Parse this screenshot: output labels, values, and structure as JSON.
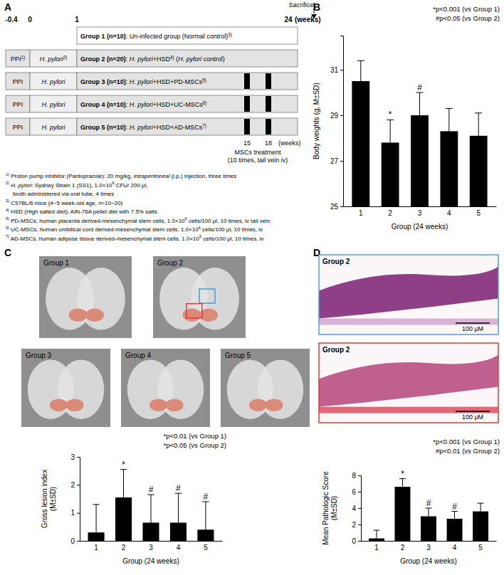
{
  "panels": [
    "A",
    "B",
    "C",
    "D"
  ],
  "diagram": {
    "sacrifice": "Sacrifice",
    "timeline": [
      {
        "value": -0.4,
        "label": "-0.4"
      },
      {
        "value": 0,
        "label": "0"
      },
      {
        "value": 1,
        "label": "1"
      },
      {
        "value": 24,
        "label": "24"
      }
    ],
    "timeline_unit": "(weeks)",
    "groups": [
      {
        "label": [
          {
            "t": "Group 1 (n=10)",
            "b": true
          },
          {
            "t": ": Un-infected group (Normal control)"
          },
          {
            "t": "3)",
            "sup": true
          }
        ],
        "pretreatment": null,
        "infection": null,
        "treated": false
      },
      {
        "label": [
          {
            "t": "Group 2 (n=20)",
            "b": true
          },
          {
            "t": ": "
          },
          {
            "t": "H. pylori",
            "i": true
          },
          {
            "t": "+HSD"
          },
          {
            "t": "4)",
            "sup": true
          },
          {
            "t": " ("
          },
          {
            "t": "H. pylori",
            "i": true
          },
          {
            "t": " control)"
          }
        ],
        "pretreatment": [
          {
            "t": "PPI"
          },
          {
            "t": "1)",
            "sup": true
          }
        ],
        "infection": [
          {
            "t": "H. pylori",
            "i": true
          },
          {
            "t": "2)",
            "sup": true
          }
        ],
        "treated": false
      },
      {
        "label": [
          {
            "t": "Group 3 (n=10)",
            "b": true
          },
          {
            "t": ": "
          },
          {
            "t": "H. pylori",
            "i": true
          },
          {
            "t": "+HSD+PD-MSCs"
          },
          {
            "t": "5)",
            "sup": true
          }
        ],
        "pretreatment": [
          {
            "t": "PPI"
          }
        ],
        "infection": [
          {
            "t": "H. pylori",
            "i": true
          }
        ],
        "treated": true
      },
      {
        "label": [
          {
            "t": "Group 4 (n=10)",
            "b": true
          },
          {
            "t": ": "
          },
          {
            "t": "H. pylori",
            "i": true
          },
          {
            "t": "+HSD+UC-MSCs"
          },
          {
            "t": "6)",
            "sup": true
          }
        ],
        "pretreatment": [
          {
            "t": "PPI"
          }
        ],
        "infection": [
          {
            "t": "H. pylori",
            "i": true
          }
        ],
        "treated": true
      },
      {
        "label": [
          {
            "t": "Group 5 (n=10)",
            "b": true
          },
          {
            "t": ": "
          },
          {
            "t": "H. pylori",
            "i": true
          },
          {
            "t": "+HSD+AD-MSCs"
          },
          {
            "t": "7)",
            "sup": true
          }
        ],
        "pretreatment": [
          {
            "t": "PPI"
          }
        ],
        "infection": [
          {
            "t": "H. pylori",
            "i": true
          }
        ],
        "treated": true
      }
    ],
    "treatment_weeks": [
      15,
      18
    ],
    "treatment_unit": "(weeks)",
    "treatment_label": [
      "MSCs treatment",
      "(10 times, tail vein iv)"
    ],
    "footnotes": [
      [
        {
          "t": "1)",
          "sup": true
        },
        {
          "t": " Proton pump inhibitor (Pantoprazole): 20 mg/kg, "
        },
        {
          "t": "intraperitoneal",
          "i": true
        },
        {
          "t": " (i.p.) injection, three times"
        }
      ],
      [
        {
          "t": "2)",
          "sup": true
        },
        {
          "t": " H. pylori",
          "i": true
        },
        {
          "t": ": Sydney Strain 1 (SS1), 1.0×10"
        },
        {
          "t": "9",
          "sup": true
        },
        {
          "t": " CFU/ 200 μl,"
        }
      ],
      [
        {
          "t": "broth administered via oral tube, 4 times"
        }
      ],
      [
        {
          "t": "3)",
          "sup": true
        },
        {
          "t": " C57BL/6 mice (4~5 week-old age, n=10~20)"
        }
      ],
      [
        {
          "t": "4)",
          "sup": true
        },
        {
          "t": " HSD (High salted diet): AIN-76A pellet diet with 7.5% salts"
        }
      ],
      [
        {
          "t": "5)",
          "sup": true
        },
        {
          "t": " PD-MSCs, human placenta derived-mesenchymal stem cells, 1.0×10"
        },
        {
          "t": "6",
          "sup": true
        },
        {
          "t": " cells/100 μl, 10 times, iv tail vein"
        }
      ],
      [
        {
          "t": "6)",
          "sup": true
        },
        {
          "t": " UC-MSCs, human umbilical cord derived-mesenchymal stem cells, 1.0×10"
        },
        {
          "t": "6",
          "sup": true
        },
        {
          "t": " cells/100 μl, 10 times, iv"
        }
      ],
      [
        {
          "t": "7)",
          "sup": true
        },
        {
          "t": " AD-MSCs, human adipose tissue derived-mesenchymal stem cells, 1.0×10"
        },
        {
          "t": "6",
          "sup": true
        },
        {
          "t": " cells/100 μl, 10 times, iv"
        }
      ]
    ]
  },
  "photos": {
    "labels": [
      "Group 1",
      "Group 2",
      "Group 3",
      "Group 4",
      "Group 5"
    ]
  },
  "histology": [
    {
      "label": "Group 2",
      "scale_bar": "100 μM"
    },
    {
      "label": "Group 2",
      "scale_bar": "100 μM"
    }
  ],
  "chart_data": [
    {
      "type": "bar",
      "categories": [
        "1",
        "2",
        "3",
        "4",
        "5"
      ],
      "values": [
        30.5,
        27.8,
        29.0,
        28.3,
        28.1
      ],
      "errors": [
        0.9,
        1.0,
        1.0,
        1.0,
        1.0
      ],
      "color": "#000000",
      "ylim": [
        25,
        32.5
      ],
      "yticks": [
        25,
        27,
        29,
        31
      ],
      "xlabel": "Group (24 weeks)",
      "ylabel": [
        "Body weights (g, M±SD)"
      ],
      "notes": [
        "*p<0.001 (vs Group 1)",
        "#p<0.05 (vs Group 2)"
      ],
      "annotations": [
        {
          "index": 1,
          "text": "*"
        },
        {
          "index": 2,
          "text": "#"
        }
      ]
    },
    {
      "type": "bar",
      "categories": [
        "1",
        "2",
        "3",
        "4",
        "5"
      ],
      "values": [
        0.3,
        1.55,
        0.65,
        0.65,
        0.4
      ],
      "errors": [
        1.0,
        1.0,
        1.0,
        1.05,
        1.0
      ],
      "color": "#000000",
      "ylim": [
        0,
        3
      ],
      "yticks": [
        0,
        1,
        2,
        3
      ],
      "xlabel": "Group (24 weeks)",
      "ylabel": [
        "Gross lesion index",
        "(M±SD)"
      ],
      "notes": [
        "*p<0.01 (vs Group 1)",
        "*p<0.05 (vs Group 2)"
      ],
      "annotations": [
        {
          "index": 1,
          "text": "*"
        },
        {
          "index": 2,
          "text": "#"
        },
        {
          "index": 3,
          "text": "#"
        },
        {
          "index": 4,
          "text": "#"
        }
      ]
    },
    {
      "type": "bar",
      "categories": [
        "1",
        "2",
        "3",
        "4",
        "5"
      ],
      "values": [
        0.3,
        6.6,
        3.0,
        2.7,
        3.6
      ],
      "errors": [
        1.0,
        1.0,
        1.0,
        0.9,
        1.0
      ],
      "color": "#000000",
      "ylim": [
        0,
        8
      ],
      "yticks": [
        0,
        2,
        4,
        6,
        8
      ],
      "xlabel": "Group (24 weeks)",
      "ylabel": [
        "Mean Pathologic Score",
        "(M±SD)"
      ],
      "notes": [
        "*p<0.001 (vs Group 1)",
        "#p<0.01 (vs Group 2)"
      ],
      "annotations": [
        {
          "index": 1,
          "text": "*"
        },
        {
          "index": 2,
          "text": "#"
        },
        {
          "index": 3,
          "text": "#"
        }
      ]
    }
  ]
}
